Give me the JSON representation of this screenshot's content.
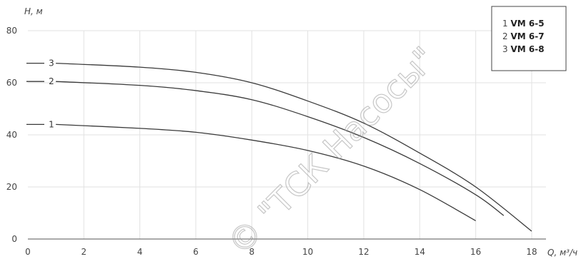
{
  "chart_data": {
    "type": "line",
    "ylabel": "H, м",
    "xlabel": "Q, м³/ч",
    "xlim": [
      0,
      18
    ],
    "ylim": [
      0,
      80
    ],
    "x_ticks": [
      0,
      2,
      4,
      6,
      8,
      10,
      12,
      14,
      16,
      18
    ],
    "y_ticks": [
      0,
      20,
      40,
      60,
      80
    ],
    "grid": true,
    "legend_position": "top-right",
    "series": [
      {
        "name": "VM 6-5",
        "label": "1",
        "points": [
          [
            1,
            44
          ],
          [
            4,
            42.5
          ],
          [
            6,
            41
          ],
          [
            8,
            38
          ],
          [
            10,
            34
          ],
          [
            12,
            28
          ],
          [
            14,
            19
          ],
          [
            16,
            7
          ]
        ]
      },
      {
        "name": "VM 6-7",
        "label": "2",
        "points": [
          [
            1,
            60.5
          ],
          [
            4,
            59
          ],
          [
            6,
            57
          ],
          [
            8,
            53.5
          ],
          [
            10,
            47
          ],
          [
            12,
            39
          ],
          [
            14,
            29
          ],
          [
            16,
            17
          ],
          [
            17,
            9
          ]
        ]
      },
      {
        "name": "VM 6-8",
        "label": "3",
        "points": [
          [
            1,
            67.5
          ],
          [
            4,
            66
          ],
          [
            6,
            64
          ],
          [
            8,
            60
          ],
          [
            10,
            53
          ],
          [
            12,
            44.5
          ],
          [
            14,
            33
          ],
          [
            16,
            20
          ],
          [
            18,
            3
          ]
        ]
      }
    ],
    "watermark": "© \"ТСК Насосы\""
  }
}
